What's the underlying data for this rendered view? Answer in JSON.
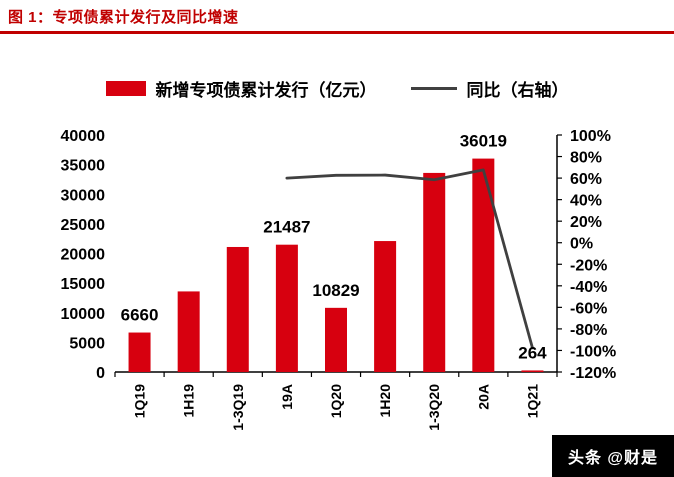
{
  "title": "图 1：专项债累计发行及同比增速",
  "legend": {
    "bar_label": "新增专项债累计发行（亿元）",
    "line_label": "同比（右轴）"
  },
  "watermark": "头条 @财是",
  "colors": {
    "bar_red": "#d7000f",
    "title_red": "#c00000",
    "line_gray": "#404040",
    "watermark_bg": "#000000"
  },
  "chart_data": {
    "type": "bar",
    "title": "图 1：专项债累计发行及同比增速",
    "categories": [
      "1Q19",
      "1H19",
      "1-3Q19",
      "19A",
      "1Q20",
      "1H20",
      "1-3Q20",
      "20A",
      "1Q21"
    ],
    "series": [
      {
        "name": "新增专项债累计发行（亿元）",
        "type": "bar",
        "axis": "left",
        "color": "#d7000f",
        "values": [
          6660,
          13600,
          21100,
          21487,
          10829,
          22100,
          33600,
          36019,
          264
        ]
      },
      {
        "name": "同比（右轴）",
        "type": "line",
        "axis": "right",
        "color": "#404040",
        "values": [
          null,
          null,
          null,
          60,
          62.6,
          62.8,
          58.5,
          67.6,
          -97.6
        ]
      }
    ],
    "data_labels": [
      {
        "index": 0,
        "text": "6660"
      },
      {
        "index": 3,
        "text": "21487"
      },
      {
        "index": 4,
        "text": "10829"
      },
      {
        "index": 7,
        "text": "36019"
      },
      {
        "index": 8,
        "text": "264"
      }
    ],
    "left_axis": {
      "min": 0,
      "max": 40000,
      "step": 5000,
      "tick_labels": [
        "0",
        "5000",
        "10000",
        "15000",
        "20000",
        "25000",
        "30000",
        "35000",
        "40000"
      ]
    },
    "right_axis": {
      "min": -120,
      "max": 100,
      "step": 20,
      "tick_labels": [
        "-120%",
        "-100%",
        "-80%",
        "-60%",
        "-40%",
        "-20%",
        "0%",
        "20%",
        "40%",
        "60%",
        "80%",
        "100%"
      ]
    },
    "legend_position": "top",
    "grid": false
  }
}
